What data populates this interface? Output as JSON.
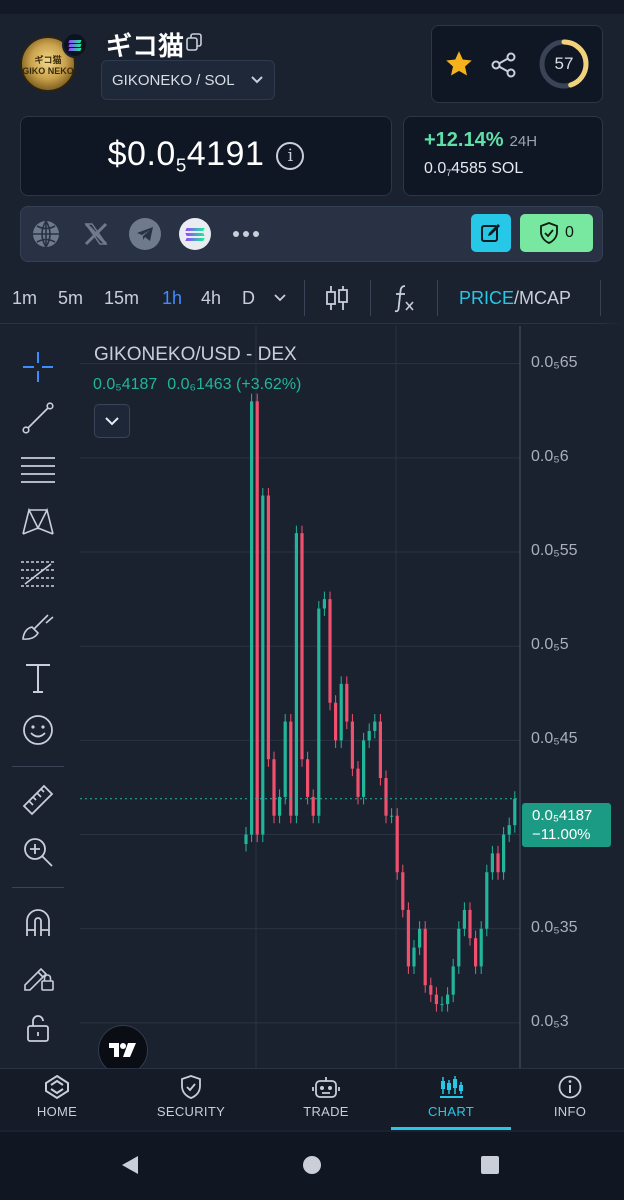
{
  "token": {
    "name": "ギコ猫",
    "pair": "GIKONEKO / SOL",
    "logo_text": "ギコ猫 GIKO NEKO"
  },
  "score": {
    "value": "57",
    "fraction": 0.45
  },
  "price": {
    "prefix": "$0.0",
    "zeros": "5",
    "digits": "4191",
    "change_pct": "+12.14%",
    "change_period": "24H",
    "sol_prefix": "0.0",
    "sol_zeros": "7",
    "sol_digits": "4585 SOL"
  },
  "social": {
    "icons": [
      "globe-icon",
      "x-icon",
      "telegram-icon",
      "solana-icon",
      "more-icon"
    ],
    "shield_count": "0"
  },
  "timeframes": [
    "1m",
    "5m",
    "15m",
    "1h",
    "4h",
    "D"
  ],
  "active_timeframe": "1h",
  "toggle": {
    "price": "PRICE",
    "sep": "/",
    "mcap": "MCAP"
  },
  "chart": {
    "title": "GIKONEKO/USD - DEX",
    "ohlc_value": "0.0₅4187",
    "ohlc_change": "0.0₆1463 (+3.62%)",
    "last_price": "0.0₅4187",
    "last_change": "−11.00%",
    "colors": {
      "up": "#22b59a",
      "down": "#f0506e"
    }
  },
  "chart_data": {
    "type": "candlestick",
    "title": "GIKONEKO/USD - DEX",
    "y_tick_labels": [
      "0.0₅65",
      "0.0₅6",
      "0.0₅55",
      "0.0₅5",
      "0.0₅45",
      "0.0₅4",
      "0.0₅35",
      "0.0₅3"
    ],
    "y_ticks": [
      6.5,
      6.0,
      5.5,
      5.0,
      4.5,
      4.0,
      3.5,
      3.0
    ],
    "y_unit_note": "values in units of 1e-6 USD",
    "ylim": [
      2.75,
      6.7
    ],
    "close": [
      4.0,
      6.3,
      4.0,
      5.8,
      4.4,
      4.1,
      4.2,
      4.6,
      4.1,
      5.6,
      4.4,
      4.2,
      4.1,
      5.2,
      5.25,
      4.7,
      4.5,
      4.8,
      4.6,
      4.35,
      4.2,
      4.5,
      4.55,
      4.6,
      4.3,
      4.1,
      4.1,
      3.8,
      3.6,
      3.3,
      3.4,
      3.5,
      3.2,
      3.15,
      3.1,
      3.1,
      3.15,
      3.3,
      3.5,
      3.6,
      3.45,
      3.3,
      3.5,
      3.8,
      3.9,
      3.8,
      4.0,
      4.05,
      4.19
    ],
    "grid": true
  },
  "nav": [
    {
      "label": "HOME",
      "icon": "home-icon"
    },
    {
      "label": "SECURITY",
      "icon": "shield-icon"
    },
    {
      "label": "TRADE",
      "icon": "robot-icon"
    },
    {
      "label": "CHART",
      "icon": "chart-icon"
    },
    {
      "label": "INFO",
      "icon": "info-icon"
    }
  ],
  "active_nav": "CHART",
  "colors": {
    "accent": "#27c7e8",
    "positive": "#5fe0a8",
    "star": "#f5b21b"
  }
}
